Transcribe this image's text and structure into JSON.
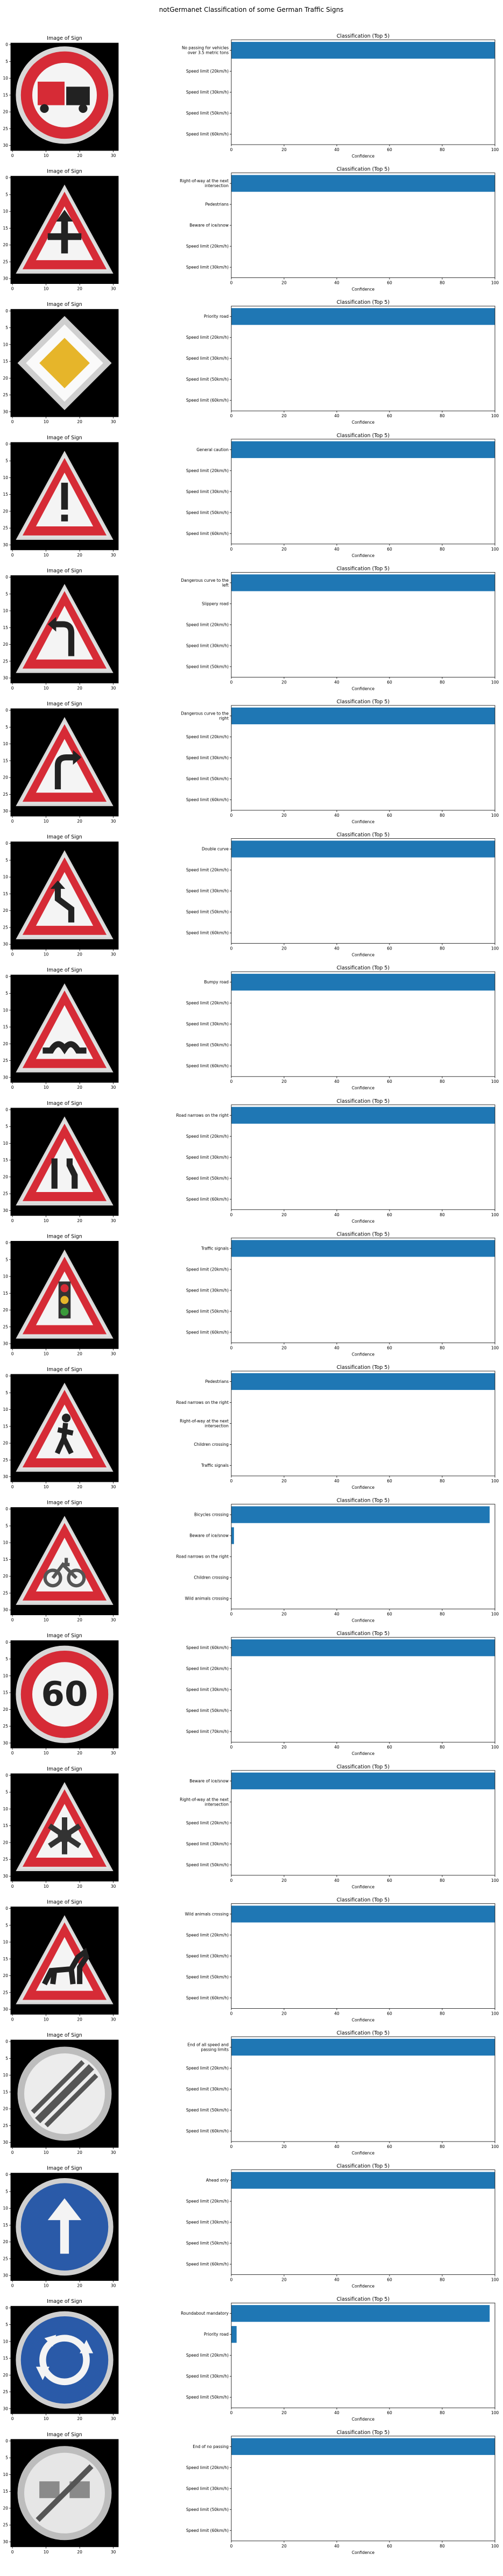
{
  "figure": {
    "title": "notGermanet Classification of some German Traffic Signs",
    "image_panel_title": "Image of Sign",
    "chart_panel_title": "Classification (Top 5)",
    "xlabel": "Confidence",
    "image_ticks": [
      "0",
      "10",
      "20",
      "30"
    ],
    "image_yticks": [
      "0",
      "5",
      "10",
      "15",
      "20",
      "25",
      "30"
    ],
    "bar_color": "#1f77b4"
  },
  "chart_data": [
    {
      "type": "bar",
      "orientation": "horizontal",
      "title": "Classification (Top 5)",
      "xlabel": "Confidence",
      "xlim": [
        0,
        100
      ],
      "xticks": [
        0,
        20,
        40,
        60,
        80,
        100
      ],
      "sign_icon": "no-passing-trucks-sign",
      "categories": [
        "No passing for vehicles over 3.5 metric tons",
        "Speed limit (20km/h)",
        "Speed limit (30km/h)",
        "Speed limit (50km/h)",
        "Speed limit (60km/h)"
      ],
      "values": [
        100,
        0,
        0,
        0,
        0
      ]
    },
    {
      "type": "bar",
      "orientation": "horizontal",
      "title": "Classification (Top 5)",
      "xlabel": "Confidence",
      "xlim": [
        0,
        100
      ],
      "xticks": [
        0,
        20,
        40,
        60,
        80,
        100
      ],
      "sign_icon": "right-of-way-sign",
      "categories": [
        "Right-of-way at the next intersection",
        "Pedestrians",
        "Beware of ice/snow",
        "Speed limit (20km/h)",
        "Speed limit (30km/h)"
      ],
      "values": [
        100,
        0,
        0,
        0,
        0
      ]
    },
    {
      "type": "bar",
      "orientation": "horizontal",
      "title": "Classification (Top 5)",
      "xlabel": "Confidence",
      "xlim": [
        0,
        100
      ],
      "xticks": [
        0,
        20,
        40,
        60,
        80,
        100
      ],
      "sign_icon": "priority-road-sign",
      "categories": [
        "Priority road",
        "Speed limit (20km/h)",
        "Speed limit (30km/h)",
        "Speed limit (50km/h)",
        "Speed limit (60km/h)"
      ],
      "values": [
        100,
        0,
        0,
        0,
        0
      ]
    },
    {
      "type": "bar",
      "orientation": "horizontal",
      "title": "Classification (Top 5)",
      "xlabel": "Confidence",
      "xlim": [
        0,
        100
      ],
      "xticks": [
        0,
        20,
        40,
        60,
        80,
        100
      ],
      "sign_icon": "general-caution-sign",
      "categories": [
        "General caution",
        "Speed limit (20km/h)",
        "Speed limit (30km/h)",
        "Speed limit (50km/h)",
        "Speed limit (60km/h)"
      ],
      "values": [
        100,
        0,
        0,
        0,
        0
      ]
    },
    {
      "type": "bar",
      "orientation": "horizontal",
      "title": "Classification (Top 5)",
      "xlabel": "Confidence",
      "xlim": [
        0,
        100
      ],
      "xticks": [
        0,
        20,
        40,
        60,
        80,
        100
      ],
      "sign_icon": "curve-left-sign",
      "categories": [
        "Dangerous curve to the left",
        "Slippery road",
        "Speed limit (20km/h)",
        "Speed limit (30km/h)",
        "Speed limit (50km/h)"
      ],
      "values": [
        100,
        0,
        0,
        0,
        0
      ]
    },
    {
      "type": "bar",
      "orientation": "horizontal",
      "title": "Classification (Top 5)",
      "xlabel": "Confidence",
      "xlim": [
        0,
        100
      ],
      "xticks": [
        0,
        20,
        40,
        60,
        80,
        100
      ],
      "sign_icon": "curve-right-sign",
      "categories": [
        "Dangerous curve to the right",
        "Speed limit (20km/h)",
        "Speed limit (30km/h)",
        "Speed limit (50km/h)",
        "Speed limit (60km/h)"
      ],
      "values": [
        100,
        0,
        0,
        0,
        0
      ]
    },
    {
      "type": "bar",
      "orientation": "horizontal",
      "title": "Classification (Top 5)",
      "xlabel": "Confidence",
      "xlim": [
        0,
        100
      ],
      "xticks": [
        0,
        20,
        40,
        60,
        80,
        100
      ],
      "sign_icon": "double-curve-sign",
      "categories": [
        "Double curve",
        "Speed limit (20km/h)",
        "Speed limit (30km/h)",
        "Speed limit (50km/h)",
        "Speed limit (60km/h)"
      ],
      "values": [
        100,
        0,
        0,
        0,
        0
      ]
    },
    {
      "type": "bar",
      "orientation": "horizontal",
      "title": "Classification (Top 5)",
      "xlabel": "Confidence",
      "xlim": [
        0,
        100
      ],
      "xticks": [
        0,
        20,
        40,
        60,
        80,
        100
      ],
      "sign_icon": "bumpy-road-sign",
      "categories": [
        "Bumpy road",
        "Speed limit (20km/h)",
        "Speed limit (30km/h)",
        "Speed limit (50km/h)",
        "Speed limit (60km/h)"
      ],
      "values": [
        100,
        0,
        0,
        0,
        0
      ]
    },
    {
      "type": "bar",
      "orientation": "horizontal",
      "title": "Classification (Top 5)",
      "xlabel": "Confidence",
      "xlim": [
        0,
        100
      ],
      "xticks": [
        0,
        20,
        40,
        60,
        80,
        100
      ],
      "sign_icon": "road-narrows-sign",
      "categories": [
        "Road narrows on the right",
        "Speed limit (20km/h)",
        "Speed limit (30km/h)",
        "Speed limit (50km/h)",
        "Speed limit (60km/h)"
      ],
      "values": [
        100,
        0,
        0,
        0,
        0
      ]
    },
    {
      "type": "bar",
      "orientation": "horizontal",
      "title": "Classification (Top 5)",
      "xlabel": "Confidence",
      "xlim": [
        0,
        100
      ],
      "xticks": [
        0,
        20,
        40,
        60,
        80,
        100
      ],
      "sign_icon": "traffic-signals-sign",
      "categories": [
        "Traffic signals",
        "Speed limit (20km/h)",
        "Speed limit (30km/h)",
        "Speed limit (50km/h)",
        "Speed limit (60km/h)"
      ],
      "values": [
        100,
        0,
        0,
        0,
        0
      ]
    },
    {
      "type": "bar",
      "orientation": "horizontal",
      "title": "Classification (Top 5)",
      "xlabel": "Confidence",
      "xlim": [
        0,
        100
      ],
      "xticks": [
        0,
        20,
        40,
        60,
        80,
        100
      ],
      "sign_icon": "pedestrians-sign",
      "categories": [
        "Pedestrians",
        "Road narrows on the right",
        "Right-of-way at the next intersection",
        "Children crossing",
        "Traffic signals"
      ],
      "values": [
        100,
        0,
        0,
        0,
        0
      ]
    },
    {
      "type": "bar",
      "orientation": "horizontal",
      "title": "Classification (Top 5)",
      "xlabel": "Confidence",
      "xlim": [
        0,
        100
      ],
      "xticks": [
        0,
        20,
        40,
        60,
        80,
        100
      ],
      "sign_icon": "bicycles-crossing-sign",
      "categories": [
        "Bicycles crossing",
        "Beware of ice/snow",
        "Road narrows on the right",
        "Children crossing",
        "Wild animals crossing"
      ],
      "values": [
        98,
        1,
        0,
        0,
        0
      ]
    },
    {
      "type": "bar",
      "orientation": "horizontal",
      "title": "Classification (Top 5)",
      "xlabel": "Confidence",
      "xlim": [
        0,
        100
      ],
      "xticks": [
        0,
        20,
        40,
        60,
        80,
        100
      ],
      "sign_icon": "speed-limit-60-sign",
      "categories": [
        "Speed limit (60km/h)",
        "Speed limit (20km/h)",
        "Speed limit (30km/h)",
        "Speed limit (50km/h)",
        "Speed limit (70km/h)"
      ],
      "values": [
        100,
        0,
        0,
        0,
        0
      ]
    },
    {
      "type": "bar",
      "orientation": "horizontal",
      "title": "Classification (Top 5)",
      "xlabel": "Confidence",
      "xlim": [
        0,
        100
      ],
      "xticks": [
        0,
        20,
        40,
        60,
        80,
        100
      ],
      "sign_icon": "beware-ice-snow-sign",
      "categories": [
        "Beware of ice/snow",
        "Right-of-way at the next intersection",
        "Speed limit (20km/h)",
        "Speed limit (30km/h)",
        "Speed limit (50km/h)"
      ],
      "values": [
        100,
        0,
        0,
        0,
        0
      ]
    },
    {
      "type": "bar",
      "orientation": "horizontal",
      "title": "Classification (Top 5)",
      "xlabel": "Confidence",
      "xlim": [
        0,
        100
      ],
      "xticks": [
        0,
        20,
        40,
        60,
        80,
        100
      ],
      "sign_icon": "wild-animals-sign",
      "categories": [
        "Wild animals crossing",
        "Speed limit (20km/h)",
        "Speed limit (30km/h)",
        "Speed limit (50km/h)",
        "Speed limit (60km/h)"
      ],
      "values": [
        100,
        0,
        0,
        0,
        0
      ]
    },
    {
      "type": "bar",
      "orientation": "horizontal",
      "title": "Classification (Top 5)",
      "xlabel": "Confidence",
      "xlim": [
        0,
        100
      ],
      "xticks": [
        0,
        20,
        40,
        60,
        80,
        100
      ],
      "sign_icon": "end-of-limits-sign",
      "categories": [
        "End of all speed and passing limits",
        "Speed limit (20km/h)",
        "Speed limit (30km/h)",
        "Speed limit (50km/h)",
        "Speed limit (60km/h)"
      ],
      "values": [
        100,
        0,
        0,
        0,
        0
      ]
    },
    {
      "type": "bar",
      "orientation": "horizontal",
      "title": "Classification (Top 5)",
      "xlabel": "Confidence",
      "xlim": [
        0,
        100
      ],
      "xticks": [
        0,
        20,
        40,
        60,
        80,
        100
      ],
      "sign_icon": "ahead-only-sign",
      "categories": [
        "Ahead only",
        "Speed limit (20km/h)",
        "Speed limit (30km/h)",
        "Speed limit (50km/h)",
        "Speed limit (60km/h)"
      ],
      "values": [
        100,
        0,
        0,
        0,
        0
      ]
    },
    {
      "type": "bar",
      "orientation": "horizontal",
      "title": "Classification (Top 5)",
      "xlabel": "Confidence",
      "xlim": [
        0,
        100
      ],
      "xticks": [
        0,
        20,
        40,
        60,
        80,
        100
      ],
      "sign_icon": "roundabout-sign",
      "categories": [
        "Roundabout mandatory",
        "Priority road",
        "Speed limit (20km/h)",
        "Speed limit (30km/h)",
        "Speed limit (50km/h)"
      ],
      "values": [
        98,
        2,
        0,
        0,
        0
      ]
    },
    {
      "type": "bar",
      "orientation": "horizontal",
      "title": "Classification (Top 5)",
      "xlabel": "Confidence",
      "xlim": [
        0,
        100
      ],
      "xticks": [
        0,
        20,
        40,
        60,
        80,
        100
      ],
      "sign_icon": "end-no-passing-sign",
      "categories": [
        "End of no passing",
        "Speed limit (20km/h)",
        "Speed limit (30km/h)",
        "Speed limit (50km/h)",
        "Speed limit (60km/h)"
      ],
      "values": [
        100,
        0,
        0,
        0,
        0
      ]
    }
  ]
}
